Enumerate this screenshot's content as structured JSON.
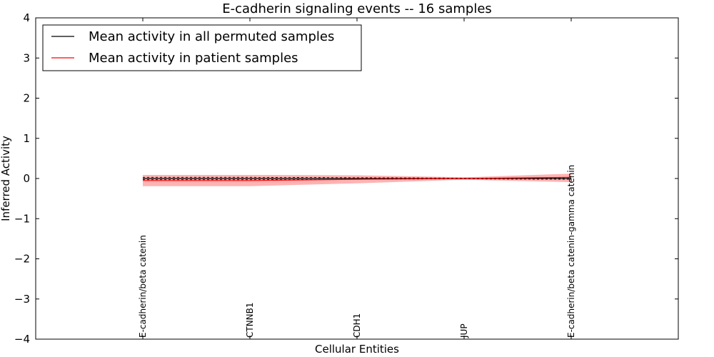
{
  "chart_data": {
    "type": "line",
    "title": "E-cadherin signaling events -- 16 samples",
    "xlabel": "Cellular Entities",
    "ylabel": "Inferred Activity",
    "ylim": [
      -4,
      4
    ],
    "yticks": [
      -4,
      -3,
      -2,
      -1,
      0,
      1,
      2,
      3,
      4
    ],
    "ytick_labels": [
      "−4",
      "−3",
      "−2",
      "−1",
      "0",
      "1",
      "2",
      "3",
      "4"
    ],
    "xlim": [
      -1,
      5
    ],
    "categories": [
      "E-cadherin/beta catenin",
      "CTNNB1",
      "CDH1",
      "JUP",
      "E-cadherin/beta catenin-gamma catenin"
    ],
    "series": [
      {
        "name": "Mean activity in all permuted samples",
        "color": "#000000",
        "values": [
          0.0,
          0.0,
          0.0,
          0.0,
          0.0
        ],
        "band_lower": [
          -0.03,
          -0.03,
          -0.02,
          -0.01,
          -0.02
        ],
        "band_upper": [
          0.03,
          0.03,
          0.02,
          0.01,
          0.02
        ]
      },
      {
        "name": "Mean activity in patient samples",
        "color": "#ff0000",
        "band_color": "#ff9999",
        "values": [
          -0.05,
          -0.05,
          -0.02,
          0.0,
          0.03
        ],
        "band_lower": [
          -0.19,
          -0.19,
          -0.12,
          -0.03,
          -0.09
        ],
        "band_upper": [
          0.09,
          0.09,
          0.08,
          0.03,
          0.12
        ]
      }
    ],
    "legend": {
      "placement": "top-left"
    }
  }
}
